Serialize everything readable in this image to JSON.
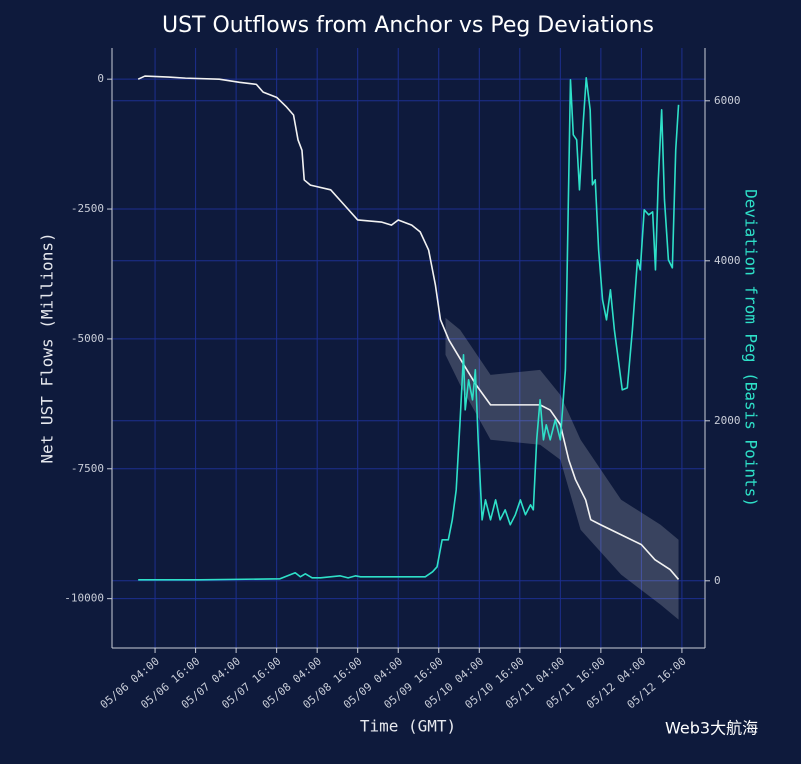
{
  "chart_data": {
    "type": "line",
    "title": "UST Outflows from Anchor vs Peg Deviations",
    "x_label": "Time (GMT)",
    "y_label": "Net UST Flows (Millions)",
    "y2_label": "Deviation from Peg (Basis Points)",
    "watermark": "Web3大航海",
    "xlim": [
      "05/05 15:15",
      "05/12 22:50"
    ],
    "xticks": [
      "05/06 04:00",
      "05/06 16:00",
      "05/07 04:00",
      "05/07 16:00",
      "05/08 04:00",
      "05/08 16:00",
      "05/09 04:00",
      "05/09 16:00",
      "05/10 04:00",
      "05/10 16:00",
      "05/11 04:00",
      "05/11 16:00",
      "05/12 04:00",
      "05/12 16:00"
    ],
    "ylim": [
      -10950,
      600
    ],
    "yticks": [
      0,
      -2500,
      -5000,
      -7500,
      -10000
    ],
    "y2lim": [
      -840,
      6660
    ],
    "y2ticks": [
      0,
      2000,
      4000,
      6000
    ],
    "grid": true,
    "series": [
      {
        "color": "#f2f2f2",
        "axis": "y",
        "x": [
          "05/05 23:00",
          "05/06 01:00",
          "05/06 08:00",
          "05/06 13:00",
          "05/06 23:00",
          "05/07 05:00",
          "05/07 10:00",
          "05/07 12:00",
          "05/07 16:00",
          "05/07 19:00",
          "05/07 21:00",
          "05/07 22:20",
          "05/07 23:30",
          "05/08 00:10",
          "05/08 02:00",
          "05/08 08:00",
          "05/08 12:00",
          "05/08 16:00",
          "05/08 23:00",
          "05/09 02:00",
          "05/09 04:00",
          "05/09 08:00",
          "05/09 10:30",
          "05/09 13:00",
          "05/09 15:00",
          "05/09 16:30",
          "05/09 19:00",
          "05/09 22:30",
          "05/10 03:00",
          "05/10 07:20",
          "05/10 22:00",
          "05/11 01:00",
          "05/11 04:00",
          "05/11 06:30",
          "05/11 08:30",
          "05/11 11:30",
          "05/11 13:00",
          "05/11 16:00",
          "05/11 22:00",
          "05/12 04:00",
          "05/12 08:00",
          "05/12 12:30",
          "05/12 15:00"
        ],
        "values": [
          0,
          60,
          40,
          20,
          0,
          -60,
          -100,
          -250,
          -350,
          -540,
          -690,
          -1170,
          -1370,
          -1940,
          -2040,
          -2130,
          -2420,
          -2710,
          -2750,
          -2810,
          -2710,
          -2810,
          -2940,
          -3290,
          -3960,
          -4630,
          -5020,
          -5400,
          -5880,
          -6270,
          -6270,
          -6370,
          -6650,
          -7330,
          -7710,
          -8100,
          -8480,
          -8580,
          -8770,
          -8960,
          -9250,
          -9440,
          -9630
        ],
        "band": {
          "color": "#ffffff",
          "x": [
            "05/09 18:00",
            "05/09 22:20",
            "05/10 07:20",
            "05/10 22:00",
            "05/11 04:00",
            "05/11 10:00",
            "05/11 22:00",
            "05/12 09:40",
            "05/12 15:00"
          ],
          "upper": [
            -4596,
            -4827,
            -5692,
            -5596,
            -6077,
            -6942,
            -8096,
            -8577,
            -8865
          ],
          "lower": [
            -5308,
            -5885,
            -6942,
            -7038,
            -7327,
            -8673,
            -9538,
            -10115,
            -10404
          ]
        }
      },
      {
        "color": "#2ee0c8",
        "axis": "y2",
        "x": [
          "05/05 23:00",
          "05/06 17:20",
          "05/07 17:00",
          "05/07 20:00",
          "05/07 21:30",
          "05/07 23:00",
          "05/08 00:30",
          "05/08 02:30",
          "05/08 05:00",
          "05/08 10:50",
          "05/08 13:10",
          "05/08 15:20",
          "05/08 16:50",
          "05/09 04:40",
          "05/09 12:00",
          "05/09 14:10",
          "05/09 15:30",
          "05/09 17:00",
          "05/09 18:50",
          "05/09 20:00",
          "05/09 21:10",
          "05/09 22:20",
          "05/09 23:20",
          "05/09 23:50",
          "05/10 00:50",
          "05/10 02:00",
          "05/10 02:50",
          "05/10 03:40",
          "05/10 04:50",
          "05/10 05:50",
          "05/10 07:20",
          "05/10 08:50",
          "05/10 10:10",
          "05/10 11:40",
          "05/10 13:10",
          "05/10 14:40",
          "05/10 16:10",
          "05/10 17:40",
          "05/10 19:10",
          "05/10 20:00",
          "05/10 21:00",
          "05/10 22:00",
          "05/10 23:00",
          "05/10 23:50",
          "05/11 01:00",
          "05/11 02:30",
          "05/11 04:00",
          "05/11 05:30",
          "05/11 07:00",
          "05/11 07:50",
          "05/11 08:50",
          "05/11 09:40",
          "05/11 10:50",
          "05/11 11:40",
          "05/11 12:50",
          "05/11 13:30",
          "05/11 14:20",
          "05/11 15:20",
          "05/11 16:30",
          "05/11 17:40",
          "05/11 18:50",
          "05/11 20:00",
          "05/11 21:10",
          "05/11 22:20",
          "05/11 23:50",
          "05/12 01:20",
          "05/12 02:50",
          "05/12 03:40",
          "05/12 04:50",
          "05/12 06:10",
          "05/12 07:20",
          "05/12 08:10",
          "05/12 09:00",
          "05/12 10:00",
          "05/12 10:50",
          "05/12 12:00",
          "05/12 13:10",
          "05/12 14:10",
          "05/12 15:00"
        ],
        "values": [
          12,
          12,
          25,
          75,
          100,
          50,
          87,
          37,
          37,
          62,
          37,
          62,
          50,
          50,
          50,
          112,
          175,
          512,
          512,
          762,
          1137,
          2012,
          2825,
          2137,
          2512,
          2262,
          2637,
          1762,
          762,
          1012,
          762,
          1012,
          762,
          887,
          700,
          825,
          1012,
          825,
          950,
          887,
          1762,
          2262,
          1762,
          1950,
          1762,
          2012,
          1762,
          2637,
          6262,
          5575,
          5512,
          4887,
          5762,
          6287,
          5887,
          4950,
          5012,
          4137,
          3512,
          3262,
          3637,
          3137,
          2762,
          2387,
          2412,
          3137,
          4012,
          3887,
          4637,
          4575,
          4612,
          3887,
          5012,
          5887,
          4762,
          4012,
          3912,
          5387,
          5950
        ]
      }
    ]
  }
}
